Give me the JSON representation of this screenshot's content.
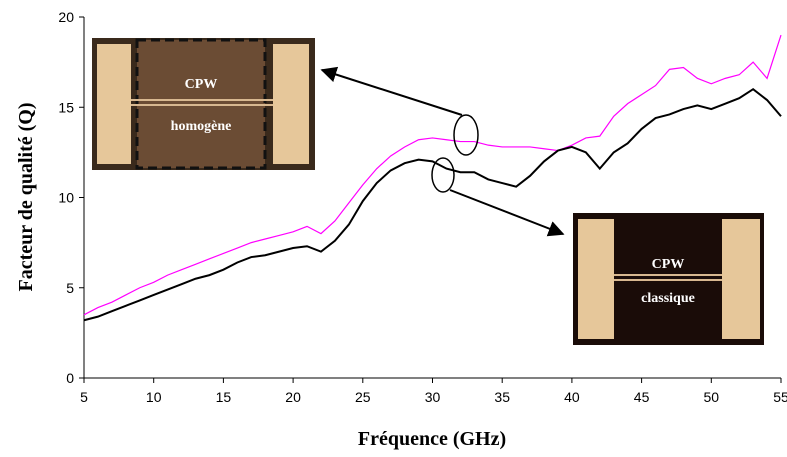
{
  "chart_data": {
    "type": "line",
    "xlabel": "Fréquence (GHz)",
    "ylabel": "Facteur de qualité (Q)",
    "x": [
      5,
      6,
      7,
      8,
      9,
      10,
      11,
      12,
      13,
      14,
      15,
      16,
      17,
      18,
      19,
      20,
      21,
      22,
      23,
      24,
      25,
      26,
      27,
      28,
      29,
      30,
      31,
      32,
      33,
      34,
      35,
      36,
      37,
      38,
      39,
      40,
      41,
      42,
      43,
      44,
      45,
      46,
      47,
      48,
      49,
      50,
      51,
      52,
      53,
      54,
      55
    ],
    "series": [
      {
        "color": "#ff00ff",
        "values": [
          3.5,
          3.9,
          4.2,
          4.6,
          5.0,
          5.3,
          5.7,
          6.0,
          6.3,
          6.6,
          6.9,
          7.2,
          7.5,
          7.7,
          7.9,
          8.1,
          8.4,
          8.0,
          8.7,
          9.7,
          10.7,
          11.6,
          12.3,
          12.8,
          13.2,
          13.3,
          13.2,
          13.1,
          13.1,
          12.9,
          12.8,
          12.8,
          12.8,
          12.7,
          12.6,
          12.9,
          13.3,
          13.4,
          14.5,
          15.2,
          15.7,
          16.2,
          17.1,
          17.2,
          16.6,
          16.3,
          16.6,
          16.8,
          17.5,
          16.6,
          19.0
        ]
      },
      {
        "color": "#000000",
        "values": [
          3.2,
          3.4,
          3.7,
          4.0,
          4.3,
          4.6,
          4.9,
          5.2,
          5.5,
          5.7,
          6.0,
          6.4,
          6.7,
          6.8,
          7.0,
          7.2,
          7.3,
          7.0,
          7.6,
          8.5,
          9.8,
          10.8,
          11.5,
          11.9,
          12.1,
          12.0,
          11.6,
          11.4,
          11.4,
          11.0,
          10.8,
          10.6,
          11.2,
          12.0,
          12.6,
          12.8,
          12.5,
          11.6,
          12.5,
          13.0,
          13.8,
          14.4,
          14.6,
          14.9,
          15.1,
          14.9,
          15.2,
          15.5,
          16.0,
          15.4,
          14.5
        ]
      }
    ],
    "xlim": [
      5,
      55
    ],
    "xticks": [
      5,
      10,
      15,
      20,
      25,
      30,
      35,
      40,
      45,
      50,
      55
    ],
    "ylim": [
      0,
      20
    ],
    "yticks": [
      0,
      5,
      10,
      15,
      20
    ],
    "annotations": [
      "CPW",
      "homogène",
      "CPW",
      "classique"
    ]
  }
}
